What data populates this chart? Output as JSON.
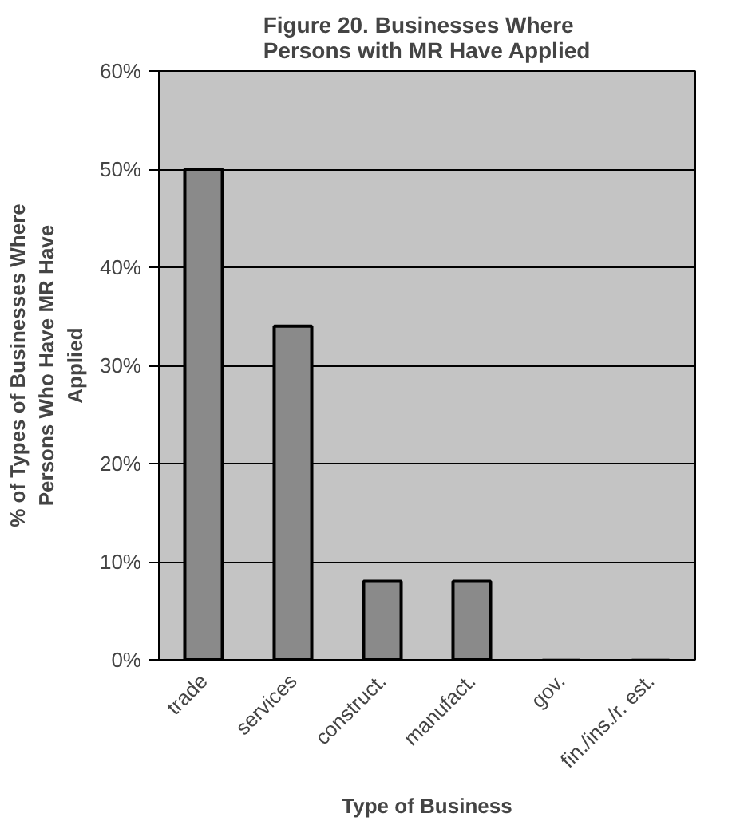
{
  "chart_data": {
    "type": "bar",
    "title": "Figure 20.  Businesses Where\nPersons with MR Have Applied",
    "xlabel": "Type of Business",
    "ylabel": "% of Types of Businesses Where\nPersons Who Have MR Have\nApplied",
    "categories": [
      "trade",
      "services",
      "construct.",
      "manufact.",
      "gov.",
      "fin./ins./r. est."
    ],
    "values": [
      50,
      34,
      8,
      8,
      0,
      0
    ],
    "color": "#8a8a8a",
    "ylim": [
      0,
      60
    ],
    "yticks": [
      {
        "value": 0,
        "label": "0%"
      },
      {
        "value": 10,
        "label": "10%"
      },
      {
        "value": 20,
        "label": "20%"
      },
      {
        "value": 30,
        "label": "30%"
      },
      {
        "value": 40,
        "label": "40%"
      },
      {
        "value": 50,
        "label": "50%"
      },
      {
        "value": 60,
        "label": "60%"
      }
    ],
    "grid": "y"
  }
}
